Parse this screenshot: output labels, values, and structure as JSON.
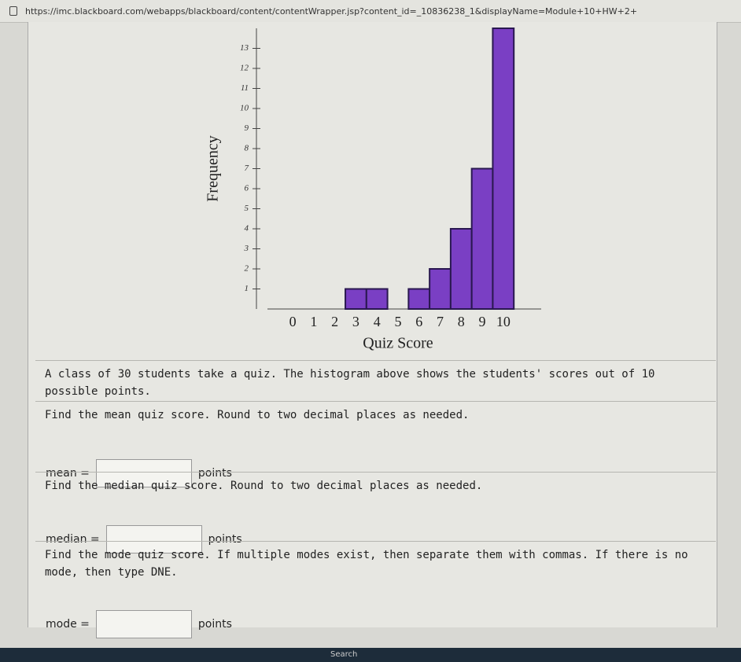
{
  "url": "https://imc.blackboard.com/webapps/blackboard/content/contentWrapper.jsp?content_id=_10836238_1&displayName=Module+10+HW+2+",
  "chart_data": {
    "type": "bar",
    "x": [
      0,
      1,
      2,
      3,
      4,
      5,
      6,
      7,
      8,
      9,
      10
    ],
    "values": [
      0,
      0,
      0,
      1,
      1,
      0,
      1,
      2,
      4,
      7,
      14
    ],
    "color": "#7a3fc4",
    "xlabel": "Quiz Score",
    "ylabel": "Frequency",
    "xlim": [
      -1.2,
      11.8
    ],
    "xticks": [
      0,
      1,
      2,
      3,
      4,
      5,
      6,
      7,
      8,
      9,
      10
    ],
    "ylim": [
      0,
      14
    ],
    "yticks": [
      1,
      2,
      3,
      4,
      5,
      6,
      7,
      8,
      9,
      10,
      11,
      12,
      13
    ]
  },
  "intro": "A class of 30 students take a quiz. The histogram above shows the students' scores out of 10 possible points.",
  "questions": [
    {
      "prompt": "Find the mean quiz score. Round to two decimal places as needed.",
      "label": "mean =",
      "unit": "points"
    },
    {
      "prompt": "Find the median quiz score. Round to two decimal places as needed.",
      "label": "median =",
      "unit": "points"
    },
    {
      "prompt": "Find the mode quiz score. If multiple modes exist, then separate them with commas. If there is no mode, then type DNE.",
      "label": "mode =",
      "unit": "points"
    }
  ],
  "taskbar": "Search"
}
